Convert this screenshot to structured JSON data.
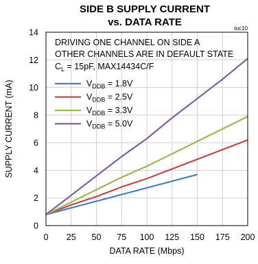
{
  "chart_data": {
    "type": "line",
    "title_line1": "SIDE B SUPPLY CURRENT",
    "title_line2": "vs. DATA RATE",
    "figure_id": "toc10",
    "xlabel": "DATA RATE (Mbps)",
    "ylabel": "SUPPLY CURRENT (mA)",
    "xlim": [
      0,
      200
    ],
    "ylim": [
      0,
      14
    ],
    "xticks": [
      0,
      25,
      50,
      75,
      100,
      125,
      150,
      175,
      200
    ],
    "yticks": [
      0,
      2,
      4,
      6,
      8,
      10,
      12,
      14
    ],
    "grid": true,
    "annotations": {
      "line1": "DRIVING ONE CHANNEL ON SIDE A",
      "line2": "OTHER CHANNELS ARE IN DEFAULT STATE",
      "line3_main": "C",
      "line3_sub": "L",
      "line3_rest": " = 15pF, MAX14434C/F"
    },
    "legend_position": "upper-left",
    "series": [
      {
        "name": "VDDB = 1.8V",
        "name_main": "V",
        "name_sub": "DDB",
        "name_rest": " = 1.8V",
        "color": "#4a7ebb",
        "x": [
          0,
          150
        ],
        "y": [
          0.8,
          3.7
        ]
      },
      {
        "name": "VDDB = 2.5V",
        "name_main": "V",
        "name_sub": "DDB",
        "name_rest": " = 2.5V",
        "color": "#be4b48",
        "x": [
          0,
          25,
          50,
          75,
          100,
          125,
          150,
          175,
          200
        ],
        "y": [
          0.8,
          1.5,
          2.1,
          2.8,
          3.4,
          4.1,
          4.8,
          5.5,
          6.2
        ]
      },
      {
        "name": "VDDB = 3.3V",
        "name_main": "V",
        "name_sub": "DDB",
        "name_rest": " = 3.3V",
        "color": "#98b954",
        "x": [
          0,
          25,
          50,
          75,
          100,
          125,
          150,
          175,
          200
        ],
        "y": [
          0.8,
          1.7,
          2.6,
          3.5,
          4.3,
          5.2,
          6.1,
          7.0,
          7.9
        ]
      },
      {
        "name": "VDDB = 5.0V",
        "name_main": "V",
        "name_sub": "DDB",
        "name_rest": " = 5.0V",
        "color": "#7d60a0",
        "x": [
          0,
          25,
          50,
          75,
          100,
          125,
          150,
          175,
          200
        ],
        "y": [
          0.8,
          2.2,
          3.6,
          5.0,
          6.3,
          7.8,
          9.2,
          10.6,
          12.1
        ]
      }
    ]
  }
}
